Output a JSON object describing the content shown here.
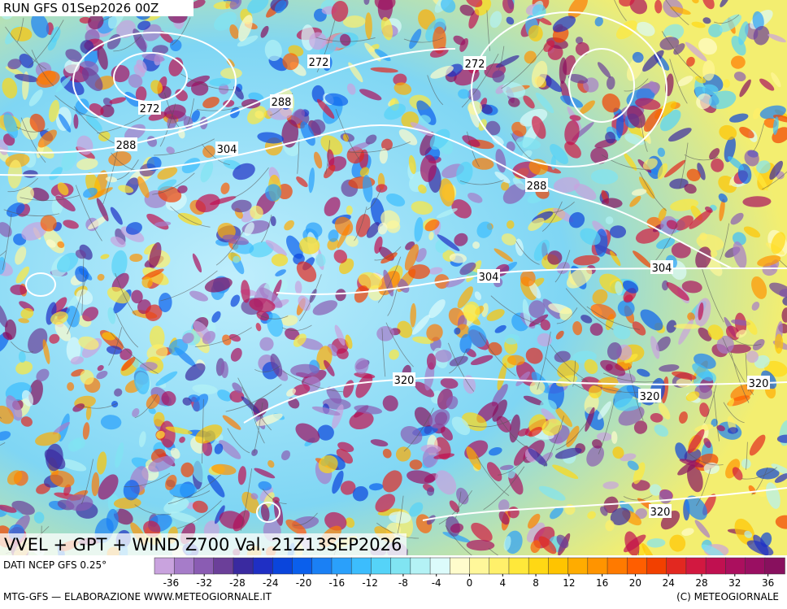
{
  "header": {
    "run": "RUN GFS 01Sep2026 00Z"
  },
  "map": {
    "title": "VVEL + GPT + WIND Z700 Val. 21Z13SEP2026",
    "contour_labels": [
      "272",
      "272",
      "272",
      "288",
      "288",
      "304",
      "288",
      "304",
      "304",
      "320",
      "320",
      "320",
      "320"
    ]
  },
  "colorbar": {
    "source": "DATI NCEP GFS 0.25°",
    "range": [
      -38,
      38
    ],
    "ticks": [
      -36,
      -32,
      -28,
      -24,
      -20,
      -16,
      -12,
      -8,
      -4,
      0,
      4,
      8,
      12,
      16,
      20,
      24,
      28,
      32,
      36
    ],
    "colors": [
      "#c9a3de",
      "#a67cc9",
      "#8a5cb3",
      "#6b3f99",
      "#3a2aa0",
      "#1f2fc4",
      "#0a45dc",
      "#0a5fec",
      "#1a80f5",
      "#2aa0fb",
      "#3cbdfd",
      "#55d3f8",
      "#80e4f2",
      "#b4f2f5",
      "#dcfbfb",
      "#fffccc",
      "#fff79a",
      "#fff06a",
      "#ffe83a",
      "#ffd814",
      "#ffc400",
      "#ffac00",
      "#ff9400",
      "#ff7a00",
      "#ff5e00",
      "#f24000",
      "#e22820",
      "#d21840",
      "#c01050",
      "#ab0f5e",
      "#9a0f62",
      "#88105e"
    ]
  },
  "footer": {
    "left": "MTG-GFS — ELABORAZIONE WWW.METEOGIORNALE.IT",
    "right": "(C) METEOGIORNALE"
  }
}
